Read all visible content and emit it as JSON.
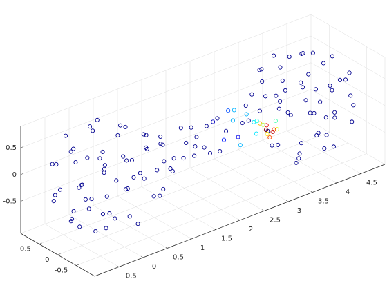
{
  "chart_data": {
    "type": "scatter3",
    "xlim": [
      -1,
      5
    ],
    "ylim": [
      -1,
      1
    ],
    "zlim": [
      -1.1,
      0.9
    ],
    "xticks": [
      -0.5,
      0,
      0.5,
      1,
      1.5,
      2,
      2.5,
      3,
      3.5,
      4,
      4.5
    ],
    "yticks": [
      -0.5,
      0,
      0.5
    ],
    "zticks": [
      -0.5,
      0,
      0.5
    ],
    "grid": true,
    "colormap": "jet",
    "x": [
      -0.8,
      -0.5,
      0.2,
      0.6,
      -0.2,
      0.4,
      -0.7,
      0.9,
      -0.9,
      0.1,
      0.3,
      -0.4,
      0.7,
      -0.6,
      0.0,
      0.5,
      -0.3,
      0.8,
      -0.1,
      0.2,
      -0.5,
      0.6,
      -0.8,
      0.1,
      -0.2,
      0.4,
      -0.6,
      0.9,
      -0.95,
      0.0,
      0.2,
      -0.4,
      0.5,
      -0.7,
      0.3,
      -0.1,
      0.7,
      -0.3,
      0.1,
      -0.5,
      0.6,
      -0.2,
      0.3,
      -0.8,
      0.8,
      0.0,
      -0.4,
      0.4,
      -0.6,
      0.2,
      -0.9,
      0.5,
      -0.2,
      0.1,
      -0.3,
      4.8,
      4.5,
      3.8,
      3.4,
      4.2,
      3.6,
      4.7,
      3.1,
      4.9,
      3.9,
      3.7,
      4.4,
      3.3,
      4.6,
      4.0,
      3.5,
      4.3,
      3.2,
      4.1,
      3.8,
      4.5,
      3.4,
      4.8,
      3.9,
      4.2,
      3.6,
      4.6,
      3.1,
      4.95,
      4.0,
      3.8,
      4.4,
      3.5,
      4.7,
      3.7,
      4.1,
      3.3,
      4.3,
      3.9,
      4.5,
      3.4,
      4.2,
      3.7,
      4.8,
      3.2,
      4.0,
      4.4,
      3.6,
      4.6,
      3.8,
      4.9,
      3.5,
      4.2,
      3.9,
      4.3,
      1.0,
      1.1,
      1.2,
      1.3,
      1.4,
      1.5,
      1.6,
      1.7,
      1.8,
      1.9,
      2.0,
      2.1,
      2.2,
      2.3,
      2.4,
      2.5,
      2.6,
      2.7,
      2.8,
      2.9,
      1.05,
      1.35,
      1.65,
      1.95,
      2.25,
      2.55,
      2.85,
      1.25,
      2.15,
      2.75,
      3.0,
      3.05,
      3.1,
      2.95,
      3.15,
      3.0,
      2.9,
      3.2,
      2.85,
      3.1,
      3.05,
      2.8
    ],
    "y": [
      0.3,
      -0.6,
      0.7,
      -0.3,
      0.1,
      0.5,
      -0.2,
      0.1,
      0.2,
      -0.9,
      0.9,
      0.4,
      0.6,
      -0.7,
      0.0,
      -0.8,
      -0.3,
      -0.5,
      0.6,
      -0.2,
      0.8,
      0.2,
      -0.4,
      0.3,
      -0.5,
      0.0,
      0.1,
      -0.2,
      0.0,
      0.95,
      -0.6,
      -0.8,
      0.7,
      0.5,
      0.3,
      -0.1,
      -0.1,
      0.7,
      -0.4,
      -0.1,
      0.4,
      0.2,
      -0.9,
      -0.1,
      0.3,
      -0.7,
      0.3,
      -0.4,
      -0.5,
      0.5,
      -0.3,
      0.1,
      -0.9,
      0.8,
      0.0,
      -0.3,
      0.6,
      -0.7,
      0.3,
      -0.1,
      -0.5,
      0.2,
      -0.1,
      -0.2,
      0.9,
      -0.9,
      -0.4,
      -0.6,
      0.7,
      0.0,
      0.8,
      0.3,
      0.5,
      -0.6,
      0.2,
      -0.8,
      -0.2,
      0.4,
      -0.3,
      0.5,
      0.0,
      -0.1,
      0.2,
      0.0,
      -0.95,
      0.6,
      0.8,
      -0.7,
      -0.5,
      -0.3,
      0.1,
      0.1,
      -0.7,
      0.4,
      0.1,
      -0.4,
      -0.2,
      0.9,
      0.1,
      -0.3,
      0.7,
      -0.3,
      0.4,
      0.5,
      -0.5,
      0.3,
      -0.1,
      0.9,
      -0.8,
      0.0,
      0.2,
      -0.3,
      0.1,
      -0.1,
      0.3,
      -0.2,
      0.0,
      0.2,
      -0.3,
      0.1,
      -0.1,
      0.3,
      -0.2,
      0.0,
      0.25,
      -0.3,
      0.1,
      -0.1,
      0.2,
      -0.2,
      -0.1,
      0.2,
      -0.25,
      0.25,
      -0.3,
      0.15,
      0.3,
      -0.2,
      0.0,
      -0.2,
      -0.4,
      -0.35,
      -0.45,
      -0.3,
      -0.5,
      -0.5,
      -0.45,
      -0.4,
      -0.35,
      -0.3,
      -0.55,
      -0.4
    ],
    "z": [
      0.4,
      0.5,
      0.6,
      0.7,
      0.9,
      -0.7,
      -0.6,
      0.2,
      -0.1,
      0.3,
      -0.1,
      -0.8,
      0.3,
      -0.2,
      -0.95,
      -0.2,
      0.7,
      -0.3,
      -0.4,
      0.4,
      0.1,
      -0.5,
      0.3,
      0.2,
      -0.5,
      0.8,
      0.7,
      -0.1,
      0.1,
      0.1,
      -0.7,
      0.4,
      -0.3,
      -0.4,
      -0.9,
      0.3,
      0.6,
      0.6,
      -0.1,
      -0.2,
      0.6,
      -0.6,
      -0.1,
      -0.5,
      -0.4,
      0.6,
      0.3,
      0.1,
      -0.6,
      0.8,
      -0.2,
      0.1,
      -0.3,
      -0.5,
      -0.3,
      0.4,
      0.5,
      0.6,
      0.7,
      0.9,
      -0.7,
      -0.6,
      0.2,
      -0.1,
      0.3,
      -0.1,
      -0.8,
      0.3,
      -0.2,
      -0.95,
      -0.2,
      0.7,
      -0.3,
      -0.4,
      0.4,
      0.1,
      -0.5,
      0.3,
      0.2,
      -0.5,
      0.8,
      0.7,
      -0.1,
      0.1,
      0.1,
      -0.7,
      0.4,
      -0.3,
      -0.4,
      -0.9,
      0.3,
      0.6,
      0.6,
      -0.1,
      -0.2,
      0.6,
      -0.6,
      -0.1,
      -0.5,
      -0.4,
      0.6,
      0.3,
      0.1,
      -0.6,
      0.8,
      -0.2,
      0.1,
      -0.3,
      -0.5,
      -0.3,
      0.1,
      -0.1,
      0.3,
      -0.3,
      0.0,
      0.2,
      -0.2,
      0.25,
      0.05,
      -0.3,
      0.3,
      -0.1,
      -0.2,
      0.3,
      0.1,
      0.0,
      0.3,
      -0.3,
      0.2,
      0.1,
      0.3,
      -0.25,
      0.1,
      0.15,
      0.2,
      -0.25,
      -0.05,
      0.0,
      -0.3,
      0.3,
      0.0,
      0.05,
      -0.05,
      0.1,
      0.0,
      -0.1,
      0.15,
      0.1,
      0.2,
      -0.15,
      0.05,
      0.0
    ],
    "c": [
      0,
      0,
      0,
      0,
      0,
      0,
      0,
      0,
      0,
      0,
      0,
      0,
      0,
      0,
      0,
      0,
      0,
      0,
      0,
      0,
      0,
      0,
      0,
      0,
      0,
      0,
      0,
      0,
      0,
      0,
      0,
      0,
      0,
      0,
      0,
      0,
      0,
      0,
      0,
      0,
      0,
      0,
      0,
      0,
      0,
      0,
      0,
      0,
      0,
      0,
      0,
      0,
      0,
      0,
      0,
      0,
      0,
      0,
      0,
      0,
      0,
      0,
      0,
      0,
      0,
      0,
      0,
      0,
      0,
      0,
      0,
      0,
      0,
      0,
      0,
      0,
      0,
      0,
      0,
      0,
      0,
      0,
      0,
      0,
      0,
      0,
      0,
      0,
      0,
      0,
      0,
      0,
      0,
      0,
      0,
      0,
      0,
      0,
      0,
      0,
      0,
      0,
      0,
      0,
      0,
      0,
      0,
      0,
      0,
      0,
      0,
      0,
      0,
      0,
      0,
      0,
      0,
      0,
      0,
      0,
      0,
      0,
      0,
      0,
      0.05,
      0.1,
      0.2,
      0.3,
      0.3,
      0.35,
      0,
      0,
      0,
      0,
      0,
      0.15,
      0.3,
      0,
      0,
      0.3,
      1.0,
      0.9,
      0.95,
      0.7,
      0.6,
      0.8,
      0.55,
      0.45,
      0.4,
      0.65,
      0.85,
      0.35
    ]
  }
}
